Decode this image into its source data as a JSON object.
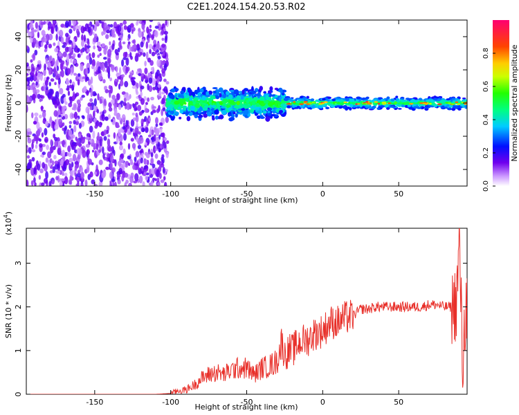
{
  "title": "C2E1.2024.154.20.53.R02",
  "chart_data": [
    {
      "type": "heatmap",
      "xlabel": "Height of straight line (km)",
      "ylabel": "Frequency (Hz)",
      "xlim": [
        -195,
        95
      ],
      "ylim": [
        -50,
        50
      ],
      "xticks": [
        -150,
        -100,
        -50,
        0,
        50
      ],
      "yticks": [
        -40,
        -20,
        0,
        20,
        40
      ],
      "colorbar": {
        "label": "Normalized spectral amplitude",
        "range": [
          0,
          1
        ],
        "ticks": [
          0.0,
          0.2,
          0.4,
          0.6,
          0.8
        ]
      },
      "regions": [
        {
          "x_range": [
            -195,
            -102
          ],
          "freq_range": [
            -50,
            50
          ],
          "amplitude": "low (0.05-0.25)",
          "pattern": "scattered noise"
        },
        {
          "x_range": [
            -102,
            -25
          ],
          "freq_center": 0,
          "freq_halfwidth": [
            4,
            10
          ],
          "amplitude": "0.2-0.5"
        },
        {
          "x_range": [
            -25,
            95
          ],
          "freq_center": 0,
          "freq_halfwidth": [
            2,
            4
          ],
          "amplitude": "0.4-0.95"
        }
      ],
      "grid": false
    },
    {
      "type": "line",
      "xlabel": "Height of straight line (km)",
      "ylabel": "SNR (10 * v/v)",
      "y_scale_label": "(x10",
      "y_scale_exponent": "4",
      "xlim": [
        -195,
        95
      ],
      "ylim": [
        0,
        3.8
      ],
      "xticks": [
        -150,
        -100,
        -50,
        0,
        50
      ],
      "yticks": [
        0,
        1,
        2,
        3
      ],
      "color": "#e8302a",
      "series": [
        {
          "x": [
            -195,
            -150,
            -110,
            -100,
            -95,
            -90,
            -85,
            -80,
            -75,
            -70,
            -65,
            -60,
            -55,
            -50,
            -45,
            -40,
            -35,
            -30,
            -27,
            -25,
            -22,
            -20,
            -15,
            -10,
            -5,
            0,
            5,
            10,
            15,
            20,
            25,
            30,
            35,
            40,
            45,
            50,
            55,
            60,
            65,
            70,
            75,
            80,
            85,
            88,
            90,
            92,
            94
          ],
          "y": [
            0.0,
            0.0,
            0.0,
            0.02,
            0.08,
            0.1,
            0.2,
            0.35,
            0.45,
            0.5,
            0.45,
            0.55,
            0.6,
            0.6,
            0.45,
            0.6,
            0.65,
            0.75,
            1.2,
            0.9,
            1.0,
            1.0,
            1.2,
            1.25,
            1.4,
            1.45,
            1.65,
            1.65,
            1.75,
            1.8,
            1.95,
            1.95,
            2.0,
            2.0,
            2.0,
            2.0,
            2.0,
            2.0,
            2.0,
            2.05,
            2.05,
            2.0,
            2.0,
            2.1,
            3.5,
            0.6,
            2.0
          ]
        }
      ],
      "grid": false
    }
  ]
}
